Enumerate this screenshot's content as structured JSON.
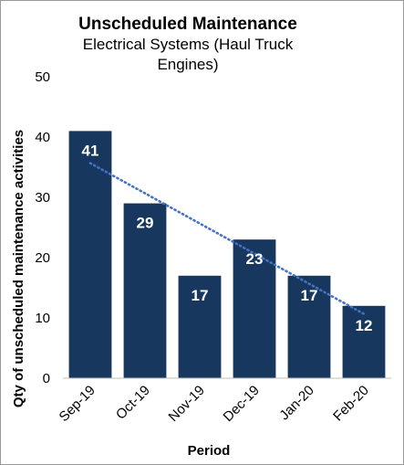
{
  "chart_data": {
    "type": "bar",
    "title": "Unscheduled Maintenance",
    "subtitle": "Electrical Systems (Haul Truck Engines)",
    "subtitle_lines": [
      "Electrical Systems (Haul Truck",
      "Engines)"
    ],
    "xlabel": "Period",
    "ylabel": "Qty of unscheduled maintenance activities",
    "categories": [
      "Sep-19",
      "Oct-19",
      "Nov-19",
      "Dec-19",
      "Jan-20",
      "Feb-20"
    ],
    "values": [
      41,
      29,
      17,
      23,
      17,
      12
    ],
    "ylim": [
      0,
      50
    ],
    "yticks": [
      0,
      10,
      20,
      30,
      40,
      50
    ],
    "trendline": {
      "type": "linear",
      "style": "dotted"
    },
    "grid": false,
    "legend": "none",
    "colors": {
      "bar": "#17375e",
      "trendline": "#4472c4",
      "data_label": "#ffffff"
    }
  }
}
